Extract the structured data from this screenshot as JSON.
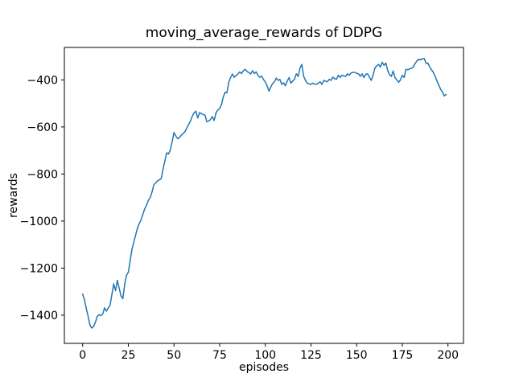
{
  "figure": {
    "background": "#ffffff",
    "title": "moving_average_rewards of DDPG",
    "xlabel": "episodes",
    "ylabel": "rewards"
  },
  "chart_data": {
    "type": "line",
    "title": "moving_average_rewards of DDPG",
    "xlabel": "episodes",
    "ylabel": "rewards",
    "xlim": [
      -10,
      208.5
    ],
    "ylim": [
      -1520,
      -262
    ],
    "xticks": [
      0,
      25,
      50,
      75,
      100,
      125,
      150,
      175,
      200
    ],
    "yticks": [
      -400,
      -600,
      -800,
      -1000,
      -1200,
      -1400
    ],
    "grid": false,
    "legend": null,
    "line_color": "#1f77b4",
    "line_width": 1.5,
    "spine_color": "#000000",
    "series": [
      {
        "name": "moving_average_rewards",
        "x_start": 0,
        "x_step": 1,
        "y": [
          -1310,
          -1335,
          -1372,
          -1405,
          -1442,
          -1455,
          -1448,
          -1430,
          -1405,
          -1398,
          -1402,
          -1395,
          -1369,
          -1383,
          -1370,
          -1358,
          -1313,
          -1267,
          -1296,
          -1252,
          -1285,
          -1318,
          -1330,
          -1270,
          -1230,
          -1218,
          -1170,
          -1120,
          -1090,
          -1060,
          -1030,
          -1010,
          -995,
          -970,
          -948,
          -932,
          -912,
          -900,
          -876,
          -845,
          -838,
          -829,
          -825,
          -820,
          -780,
          -745,
          -710,
          -715,
          -698,
          -662,
          -624,
          -638,
          -650,
          -645,
          -635,
          -628,
          -620,
          -605,
          -590,
          -575,
          -555,
          -540,
          -533,
          -562,
          -539,
          -543,
          -547,
          -550,
          -578,
          -575,
          -568,
          -556,
          -573,
          -540,
          -528,
          -522,
          -505,
          -472,
          -452,
          -455,
          -410,
          -390,
          -375,
          -389,
          -381,
          -375,
          -366,
          -373,
          -361,
          -355,
          -364,
          -369,
          -375,
          -361,
          -373,
          -366,
          -381,
          -389,
          -384,
          -398,
          -409,
          -425,
          -448,
          -430,
          -415,
          -408,
          -392,
          -402,
          -398,
          -419,
          -412,
          -425,
          -405,
          -390,
          -414,
          -405,
          -397,
          -374,
          -385,
          -350,
          -334,
          -385,
          -402,
          -414,
          -417,
          -419,
          -414,
          -417,
          -419,
          -414,
          -408,
          -419,
          -402,
          -406,
          -408,
          -397,
          -402,
          -388,
          -395,
          -397,
          -380,
          -390,
          -380,
          -383,
          -385,
          -374,
          -380,
          -370,
          -368,
          -368,
          -372,
          -374,
          -385,
          -374,
          -390,
          -376,
          -374,
          -388,
          -402,
          -380,
          -350,
          -340,
          -334,
          -345,
          -325,
          -338,
          -328,
          -360,
          -378,
          -385,
          -362,
          -390,
          -400,
          -410,
          -400,
          -380,
          -390,
          -355,
          -357,
          -353,
          -351,
          -345,
          -330,
          -320,
          -312,
          -315,
          -310,
          -309,
          -330,
          -328,
          -345,
          -357,
          -368,
          -385,
          -405,
          -422,
          -440,
          -452,
          -468,
          -462
        ]
      }
    ]
  }
}
